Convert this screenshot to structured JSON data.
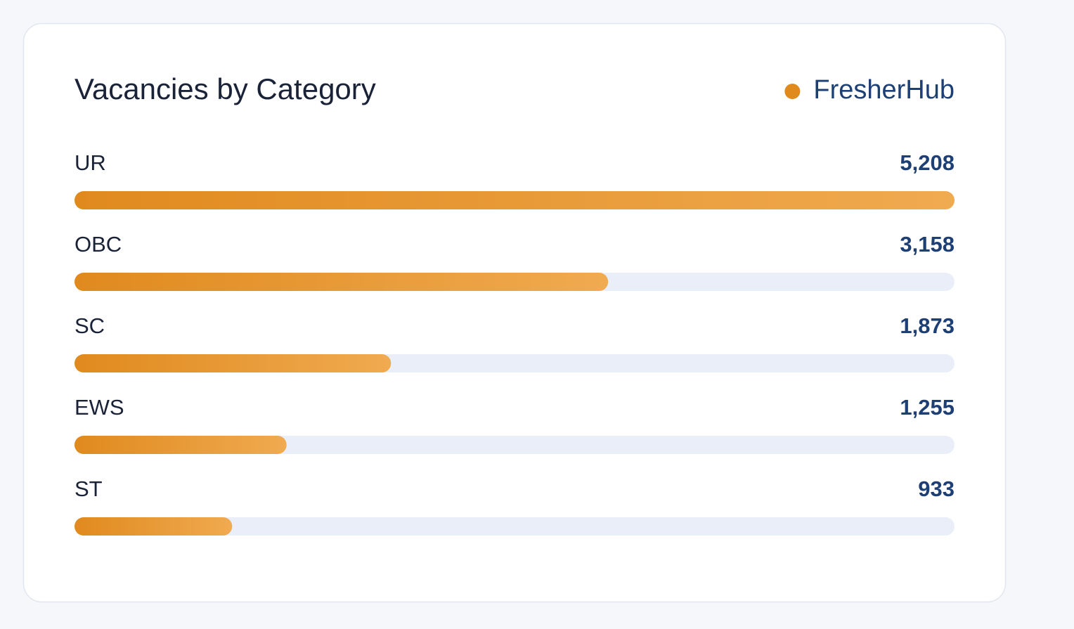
{
  "chart_data": {
    "type": "bar",
    "orientation": "horizontal",
    "title": "Vacancies by Category",
    "categories": [
      "UR",
      "OBC",
      "SC",
      "EWS",
      "ST"
    ],
    "series": [
      {
        "name": "FresherHub",
        "color": "#e08a1e",
        "values": [
          5208,
          3158,
          1873,
          1255,
          933
        ],
        "value_labels": [
          "5,208",
          "3,158",
          "1,873",
          "1,255",
          "933"
        ]
      }
    ],
    "xlim": [
      0,
      5208
    ]
  }
}
